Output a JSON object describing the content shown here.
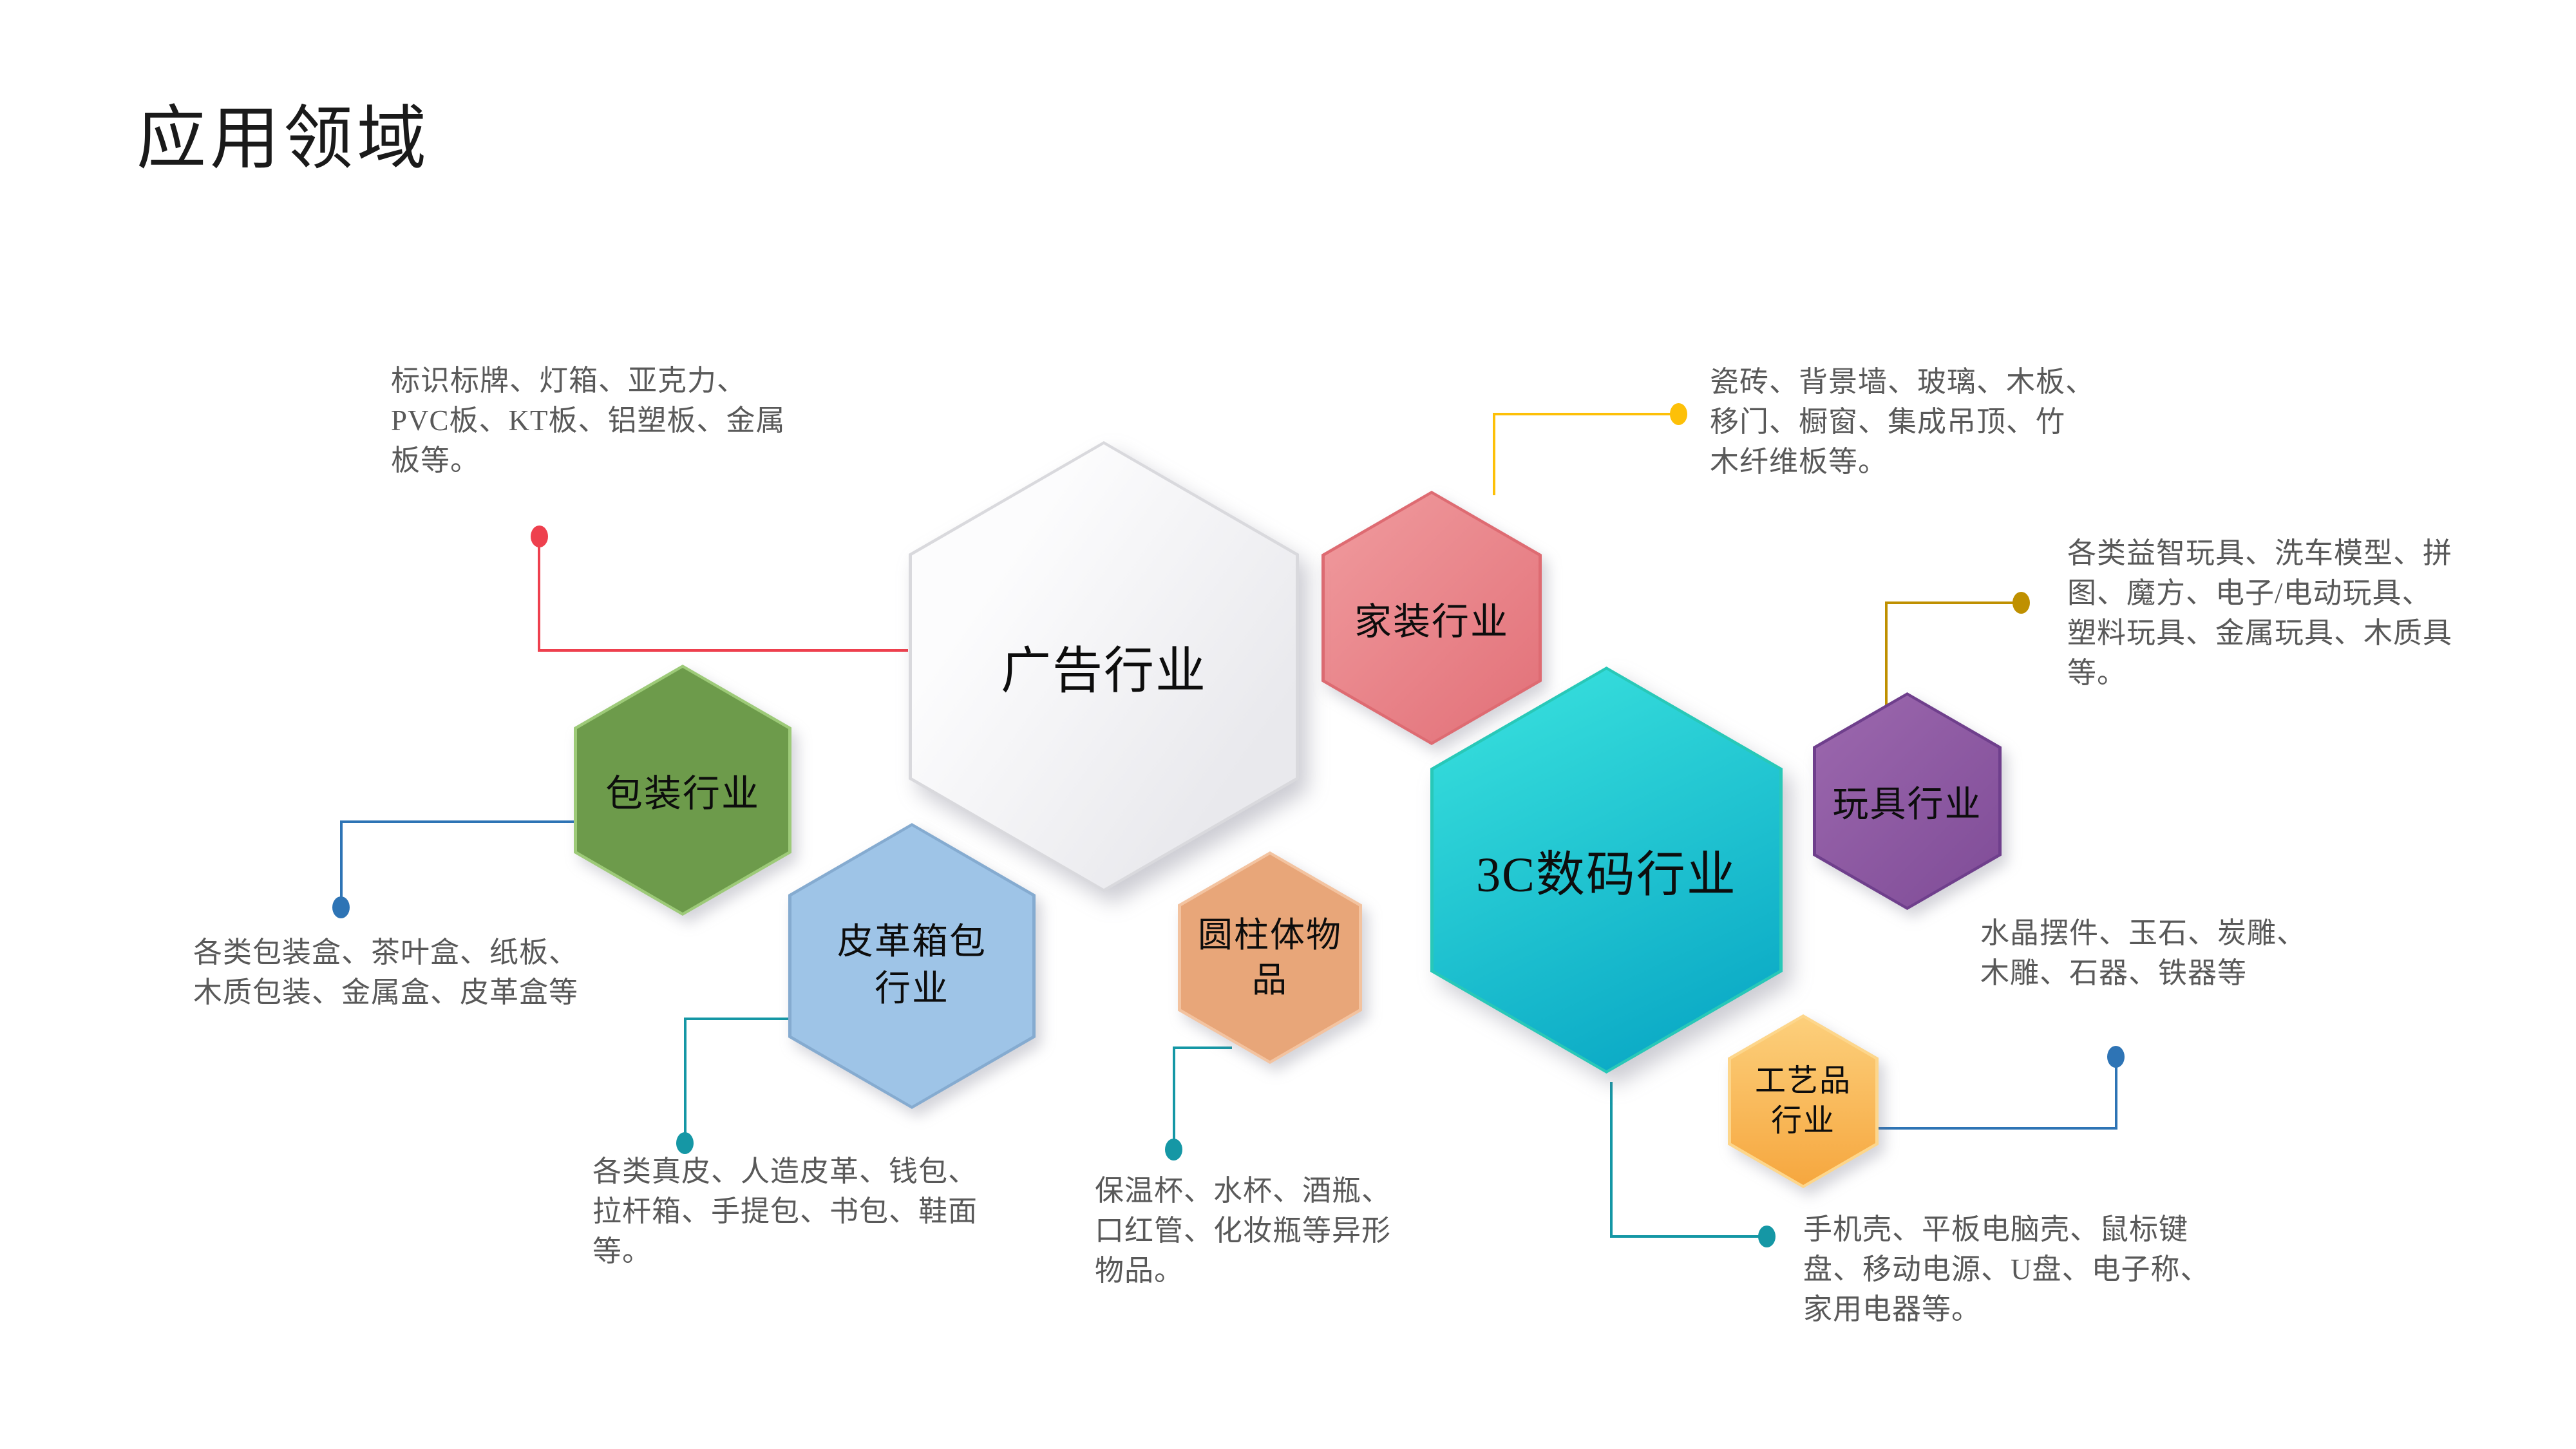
{
  "title": "应用领域",
  "hexagons": {
    "advertising": {
      "label": "广告行业",
      "color": "#ededf0"
    },
    "home_decor": {
      "label": "家装行业",
      "color": "#e98287"
    },
    "packaging": {
      "label": "包装行业",
      "color": "#6d9b4b"
    },
    "leather_bags": {
      "label": "皮革箱包\n行业",
      "color": "#9ec4e7"
    },
    "cylinder": {
      "label": "圆柱体物\n品",
      "color": "#e8a679"
    },
    "digital_3c": {
      "label": "3C数码行业",
      "color": "#12b9cd"
    },
    "toys": {
      "label": "玩具行业",
      "color": "#8a55a2"
    },
    "crafts": {
      "label": "工艺品\n行业",
      "color": "#f8b74f"
    }
  },
  "notes": {
    "advertising": "标识标牌、灯箱、亚克力、\nPVC板、KT板、铝塑板、金属\n板等。",
    "home_decor": "瓷砖、背景墙、玻璃、木板、\n移门、橱窗、集成吊顶、竹\n木纤维板等。",
    "toys": "各类益智玩具、洗车模型、拼\n图、魔方、电子/电动玩具、\n塑料玩具、金属玩具、木质具\n等。",
    "packaging": "各类包装盒、茶叶盒、纸板、\n木质包装、金属盒、皮革盒等",
    "crafts": "水晶摆件、玉石、炭雕、\n木雕、石器、铁器等",
    "leather_bags": "各类真皮、人造皮革、钱包、\n拉杆箱、手提包、书包、鞋面\n等。",
    "cylinder": "保温杯、水杯、酒瓶、\n口红管、化妆瓶等异形\n物品。",
    "digital_3c": "手机壳、平板电脑壳、鼠标键\n盘、移动电源、U盘、电子称、\n家用电器等。"
  },
  "connector_colors": {
    "advertising": "#ee404e",
    "home_decor": "#fdc008",
    "toys": "#bf9000",
    "packaging": "#2e74b5",
    "crafts": "#2e74b5",
    "leather_bags": "#1597a5",
    "cylinder": "#1597a5",
    "digital_3c": "#1597a5"
  },
  "note_text_color": "#595959"
}
